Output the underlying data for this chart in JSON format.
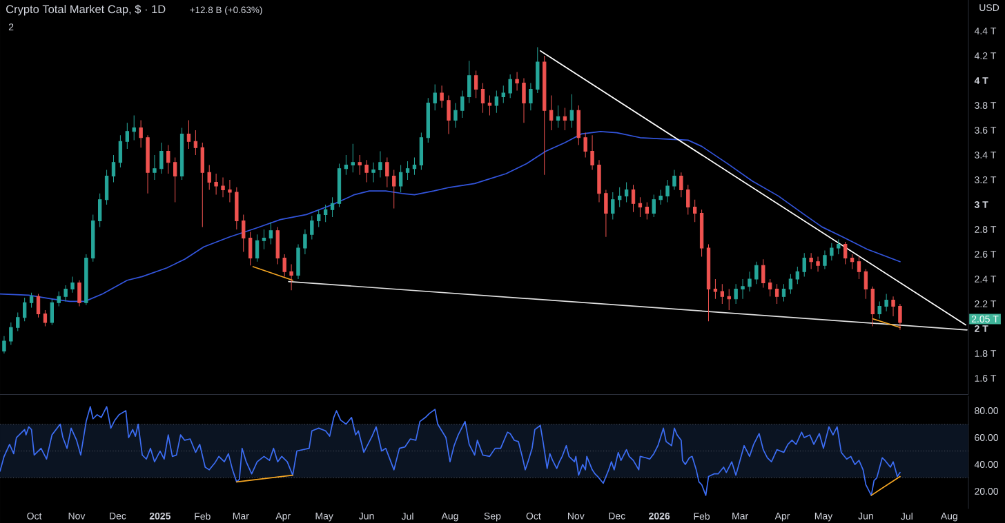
{
  "chart_data": [
    {
      "type": "candlestick",
      "title": "Crypto Total Market Cap, $ · 1D",
      "subtitle": "+12.8 B (+0.63%)",
      "x": [
        "2024-09-09",
        "2024-09-14",
        "2024-09-19",
        "2024-09-24",
        "2024-09-29",
        "2024-10-04",
        "2024-10-09",
        "2024-10-14",
        "2024-10-19",
        "2024-10-24",
        "2024-10-29",
        "2024-11-03",
        "2024-11-08",
        "2024-11-13",
        "2024-11-18",
        "2024-11-23",
        "2024-11-28",
        "2024-12-03",
        "2024-12-08",
        "2024-12-13",
        "2024-12-18",
        "2024-12-23",
        "2024-12-28",
        "2025-01-02",
        "2025-01-07",
        "2025-01-12",
        "2025-01-17",
        "2025-01-22",
        "2025-01-27",
        "2025-02-01",
        "2025-02-06",
        "2025-02-11",
        "2025-02-16",
        "2025-02-21",
        "2025-02-26",
        "2025-03-03",
        "2025-03-08",
        "2025-03-13",
        "2025-03-18",
        "2025-03-23",
        "2025-03-28",
        "2025-04-02",
        "2025-04-07",
        "2025-04-12",
        "2025-04-17",
        "2025-04-22",
        "2025-04-27",
        "2025-05-02",
        "2025-05-07",
        "2025-05-12",
        "2025-05-17",
        "2025-05-22",
        "2025-05-27",
        "2025-06-01",
        "2025-06-06",
        "2025-06-11",
        "2025-06-16",
        "2025-06-21",
        "2025-06-26",
        "2025-07-01",
        "2025-07-06",
        "2025-07-11",
        "2025-07-16",
        "2025-07-21",
        "2025-07-26",
        "2025-07-31",
        "2025-08-05",
        "2025-08-10",
        "2025-08-15",
        "2025-08-20",
        "2025-08-25",
        "2025-08-30",
        "2025-09-04",
        "2025-09-09",
        "2025-09-14",
        "2025-09-19",
        "2025-09-24",
        "2025-09-29",
        "2025-10-04",
        "2025-10-09",
        "2025-10-14",
        "2025-10-19",
        "2025-10-24",
        "2025-10-29",
        "2025-11-03",
        "2025-11-08",
        "2025-11-13",
        "2025-11-18",
        "2025-11-23",
        "2025-11-28",
        "2025-12-03",
        "2025-12-08",
        "2025-12-13",
        "2025-12-18",
        "2025-12-23",
        "2025-12-28",
        "2026-01-02",
        "2026-01-07",
        "2026-01-12",
        "2026-01-17",
        "2026-01-22",
        "2026-01-27",
        "2026-02-01",
        "2026-02-06",
        "2026-02-11",
        "2026-02-16",
        "2026-02-21",
        "2026-02-26",
        "2026-03-03",
        "2026-03-08",
        "2026-03-13",
        "2026-03-18",
        "2026-03-23",
        "2026-03-28",
        "2026-04-02",
        "2026-04-07",
        "2026-04-12",
        "2026-04-17",
        "2026-04-22",
        "2026-04-27",
        "2026-05-02",
        "2026-05-07",
        "2026-05-12",
        "2026-05-17",
        "2026-05-22",
        "2026-05-27",
        "2026-06-01",
        "2026-06-06",
        "2026-06-11",
        "2026-06-16",
        "2026-06-21",
        "2026-06-26"
      ],
      "ohlc": [
        [
          1.82,
          1.94,
          1.8,
          1.9
        ],
        [
          1.9,
          2.05,
          1.87,
          2.01
        ],
        [
          2.01,
          2.13,
          1.98,
          2.09
        ],
        [
          2.09,
          2.25,
          2.06,
          2.21
        ],
        [
          2.21,
          2.29,
          2.17,
          2.26
        ],
        [
          2.26,
          2.28,
          2.09,
          2.12
        ],
        [
          2.12,
          2.15,
          2.02,
          2.05
        ],
        [
          2.05,
          2.24,
          2.03,
          2.21
        ],
        [
          2.21,
          2.3,
          2.18,
          2.26
        ],
        [
          2.26,
          2.35,
          2.22,
          2.32
        ],
        [
          2.32,
          2.42,
          2.29,
          2.37
        ],
        [
          2.37,
          2.39,
          2.18,
          2.21
        ],
        [
          2.21,
          2.6,
          2.19,
          2.57
        ],
        [
          2.57,
          2.92,
          2.54,
          2.87
        ],
        [
          2.87,
          3.09,
          2.82,
          3.04
        ],
        [
          3.04,
          3.28,
          3.0,
          3.23
        ],
        [
          3.23,
          3.4,
          3.18,
          3.34
        ],
        [
          3.34,
          3.56,
          3.3,
          3.51
        ],
        [
          3.51,
          3.66,
          3.45,
          3.59
        ],
        [
          3.59,
          3.72,
          3.52,
          3.62
        ],
        [
          3.62,
          3.68,
          3.46,
          3.54
        ],
        [
          3.54,
          3.56,
          3.09,
          3.26
        ],
        [
          3.26,
          3.4,
          3.2,
          3.29
        ],
        [
          3.29,
          3.5,
          3.25,
          3.43
        ],
        [
          3.43,
          3.48,
          3.25,
          3.34
        ],
        [
          3.34,
          3.38,
          3.02,
          3.23
        ],
        [
          3.23,
          3.62,
          3.2,
          3.57
        ],
        [
          3.57,
          3.68,
          3.45,
          3.51
        ],
        [
          3.51,
          3.6,
          3.4,
          3.46
        ],
        [
          3.46,
          3.5,
          2.82,
          3.26
        ],
        [
          3.26,
          3.32,
          3.12,
          3.18
        ],
        [
          3.18,
          3.25,
          3.08,
          3.15
        ],
        [
          3.15,
          3.22,
          3.06,
          3.12
        ],
        [
          3.12,
          3.2,
          3.02,
          3.1
        ],
        [
          3.1,
          3.14,
          2.8,
          2.87
        ],
        [
          2.87,
          2.92,
          2.62,
          2.73
        ],
        [
          2.73,
          2.78,
          2.51,
          2.57
        ],
        [
          2.57,
          2.76,
          2.54,
          2.71
        ],
        [
          2.71,
          2.8,
          2.64,
          2.73
        ],
        [
          2.73,
          2.86,
          2.68,
          2.79
        ],
        [
          2.79,
          2.82,
          2.52,
          2.57
        ],
        [
          2.57,
          2.6,
          2.42,
          2.46
        ],
        [
          2.46,
          2.52,
          2.31,
          2.43
        ],
        [
          2.43,
          2.68,
          2.4,
          2.65
        ],
        [
          2.65,
          2.8,
          2.6,
          2.76
        ],
        [
          2.76,
          2.91,
          2.72,
          2.87
        ],
        [
          2.87,
          2.96,
          2.82,
          2.92
        ],
        [
          2.92,
          3.0,
          2.86,
          2.96
        ],
        [
          2.96,
          3.06,
          2.9,
          3.01
        ],
        [
          3.01,
          3.33,
          2.98,
          3.29
        ],
        [
          3.29,
          3.4,
          3.24,
          3.32
        ],
        [
          3.32,
          3.49,
          3.26,
          3.34
        ],
        [
          3.34,
          3.4,
          3.24,
          3.32
        ],
        [
          3.32,
          3.36,
          3.18,
          3.26
        ],
        [
          3.26,
          3.34,
          3.18,
          3.28
        ],
        [
          3.28,
          3.43,
          3.22,
          3.34
        ],
        [
          3.34,
          3.38,
          3.14,
          3.23
        ],
        [
          3.23,
          3.28,
          2.97,
          3.15
        ],
        [
          3.15,
          3.32,
          3.1,
          3.26
        ],
        [
          3.26,
          3.35,
          3.2,
          3.29
        ],
        [
          3.29,
          3.38,
          3.24,
          3.32
        ],
        [
          3.32,
          3.58,
          3.28,
          3.54
        ],
        [
          3.54,
          3.86,
          3.5,
          3.82
        ],
        [
          3.82,
          3.97,
          3.76,
          3.9
        ],
        [
          3.9,
          3.96,
          3.78,
          3.84
        ],
        [
          3.84,
          3.88,
          3.57,
          3.68
        ],
        [
          3.68,
          3.82,
          3.62,
          3.76
        ],
        [
          3.76,
          3.92,
          3.7,
          3.87
        ],
        [
          3.87,
          4.16,
          3.82,
          4.04
        ],
        [
          4.04,
          4.08,
          3.86,
          3.93
        ],
        [
          3.93,
          3.98,
          3.74,
          3.82
        ],
        [
          3.82,
          3.88,
          3.72,
          3.8
        ],
        [
          3.8,
          3.92,
          3.74,
          3.87
        ],
        [
          3.87,
          3.96,
          3.82,
          3.9
        ],
        [
          3.9,
          4.05,
          3.86,
          4.01
        ],
        [
          4.01,
          4.07,
          3.92,
          3.98
        ],
        [
          3.98,
          4.02,
          3.66,
          3.82
        ],
        [
          3.82,
          3.98,
          3.76,
          3.93
        ],
        [
          3.93,
          4.27,
          3.9,
          4.15
        ],
        [
          4.15,
          4.2,
          3.24,
          3.76
        ],
        [
          3.76,
          3.88,
          3.6,
          3.68
        ],
        [
          3.68,
          3.8,
          3.62,
          3.71
        ],
        [
          3.71,
          3.78,
          3.6,
          3.68
        ],
        [
          3.68,
          3.89,
          3.62,
          3.76
        ],
        [
          3.76,
          3.8,
          3.48,
          3.54
        ],
        [
          3.54,
          3.58,
          3.38,
          3.43
        ],
        [
          3.43,
          3.56,
          3.28,
          3.32
        ],
        [
          3.32,
          3.36,
          3.02,
          3.09
        ],
        [
          3.09,
          3.12,
          2.74,
          2.93
        ],
        [
          2.93,
          3.1,
          2.88,
          3.04
        ],
        [
          3.04,
          3.14,
          2.98,
          3.07
        ],
        [
          3.07,
          3.18,
          3.02,
          3.12
        ],
        [
          3.12,
          3.16,
          2.94,
          3.01
        ],
        [
          3.01,
          3.06,
          2.9,
          2.98
        ],
        [
          2.98,
          3.02,
          2.88,
          2.93
        ],
        [
          2.93,
          3.08,
          2.9,
          3.04
        ],
        [
          3.04,
          3.12,
          3.0,
          3.07
        ],
        [
          3.07,
          3.2,
          3.02,
          3.15
        ],
        [
          3.15,
          3.28,
          3.12,
          3.23
        ],
        [
          3.23,
          3.26,
          3.06,
          3.12
        ],
        [
          3.12,
          3.16,
          2.92,
          2.98
        ],
        [
          2.98,
          3.04,
          2.86,
          2.93
        ],
        [
          2.93,
          2.96,
          2.58,
          2.65
        ],
        [
          2.65,
          2.68,
          2.06,
          2.32
        ],
        [
          2.32,
          2.4,
          2.24,
          2.3
        ],
        [
          2.3,
          2.36,
          2.2,
          2.26
        ],
        [
          2.26,
          2.32,
          2.15,
          2.24
        ],
        [
          2.24,
          2.36,
          2.2,
          2.32
        ],
        [
          2.32,
          2.4,
          2.24,
          2.34
        ],
        [
          2.34,
          2.46,
          2.3,
          2.4
        ],
        [
          2.4,
          2.54,
          2.36,
          2.51
        ],
        [
          2.51,
          2.56,
          2.33,
          2.37
        ],
        [
          2.37,
          2.4,
          2.26,
          2.32
        ],
        [
          2.32,
          2.36,
          2.2,
          2.26
        ],
        [
          2.26,
          2.36,
          2.22,
          2.32
        ],
        [
          2.32,
          2.44,
          2.28,
          2.4
        ],
        [
          2.4,
          2.5,
          2.36,
          2.46
        ],
        [
          2.46,
          2.61,
          2.42,
          2.57
        ],
        [
          2.57,
          2.61,
          2.48,
          2.54
        ],
        [
          2.54,
          2.58,
          2.46,
          2.51
        ],
        [
          2.51,
          2.63,
          2.48,
          2.59
        ],
        [
          2.59,
          2.69,
          2.55,
          2.65
        ],
        [
          2.65,
          2.72,
          2.6,
          2.68
        ],
        [
          2.68,
          2.7,
          2.52,
          2.57
        ],
        [
          2.57,
          2.6,
          2.48,
          2.54
        ],
        [
          2.54,
          2.58,
          2.4,
          2.46
        ],
        [
          2.46,
          2.48,
          2.24,
          2.32
        ],
        [
          2.32,
          2.34,
          2.02,
          2.12
        ],
        [
          2.12,
          2.22,
          2.08,
          2.18
        ],
        [
          2.18,
          2.28,
          2.14,
          2.23
        ],
        [
          2.23,
          2.26,
          2.1,
          2.18
        ],
        [
          2.18,
          2.2,
          1.99,
          2.05
        ]
      ],
      "series": [
        {
          "type": "line",
          "color": "#3355dd",
          "x": [
            "2024-09-06",
            "2024-09-27",
            "2024-10-14",
            "2024-10-27",
            "2024-11-07",
            "2024-11-20",
            "2024-12-08",
            "2024-12-19",
            "2025-01-06",
            "2025-01-19",
            "2025-02-02",
            "2025-02-21",
            "2025-03-12",
            "2025-03-30",
            "2025-04-18",
            "2025-05-07",
            "2025-05-23",
            "2025-06-03",
            "2025-06-15",
            "2025-06-27",
            "2025-07-06",
            "2025-07-20",
            "2025-08-01",
            "2025-08-19",
            "2025-09-11",
            "2025-09-26",
            "2025-10-10",
            "2025-10-24",
            "2025-11-05",
            "2025-11-19",
            "2025-12-01",
            "2025-12-18",
            "2026-01-04",
            "2026-01-22",
            "2026-02-01",
            "2026-02-20",
            "2026-03-10",
            "2026-03-29",
            "2026-04-17",
            "2026-04-30",
            "2026-05-15",
            "2026-06-02",
            "2026-06-26"
          ],
          "values": [
            2.28,
            2.27,
            2.24,
            2.22,
            2.22,
            2.28,
            2.39,
            2.42,
            2.49,
            2.56,
            2.66,
            2.74,
            2.81,
            2.88,
            2.92,
            3.0,
            3.08,
            3.11,
            3.11,
            3.09,
            3.08,
            3.11,
            3.14,
            3.17,
            3.25,
            3.33,
            3.43,
            3.5,
            3.57,
            3.59,
            3.58,
            3.54,
            3.53,
            3.52,
            3.47,
            3.33,
            3.19,
            3.07,
            2.92,
            2.82,
            2.74,
            2.64,
            2.54
          ]
        },
        {
          "type": "line",
          "color": "#ffffff",
          "x": [
            "2025-10-06",
            "2026-08-13"
          ],
          "values": [
            4.24,
            2.03
          ]
        },
        {
          "type": "line",
          "color": "#e0e0e0",
          "x": [
            "2025-04-05",
            "2026-08-14"
          ],
          "values": [
            2.38,
            1.99
          ]
        },
        {
          "type": "line",
          "color": "#f5a623",
          "x": [
            "2025-03-10",
            "2025-04-08"
          ],
          "values": [
            2.5,
            2.39
          ]
        },
        {
          "type": "line",
          "color": "#f5a623",
          "x": [
            "2026-06-06",
            "2026-06-26"
          ],
          "values": [
            2.08,
            2.01
          ]
        }
      ],
      "xlim": [
        "2024-09-06",
        "2026-08-15"
      ],
      "ylim": [
        1.47,
        4.65
      ],
      "yticks": [
        {
          "value": 1.6,
          "label": "1.6 T"
        },
        {
          "value": 1.8,
          "label": "1.8 T"
        },
        {
          "value": 2,
          "label": "2 T"
        },
        {
          "value": 2.2,
          "label": "2.2 T"
        },
        {
          "value": 2.4,
          "label": "2.4 T"
        },
        {
          "value": 2.6,
          "label": "2.6 T"
        },
        {
          "value": 2.8,
          "label": "2.8 T"
        },
        {
          "value": 3,
          "label": "3 T"
        },
        {
          "value": 3.2,
          "label": "3.2 T"
        },
        {
          "value": 3.4,
          "label": "3.4 T"
        },
        {
          "value": 3.6,
          "label": "3.6 T"
        },
        {
          "value": 3.8,
          "label": "3.8 T"
        },
        {
          "value": 4,
          "label": "4 T"
        },
        {
          "value": 4.2,
          "label": "4.2 T"
        },
        {
          "value": 4.4,
          "label": "4.4 T"
        }
      ],
      "tick_labels": "y",
      "annotations": [
        "2.05 T",
        "2",
        "USD"
      ]
    },
    {
      "type": "line",
      "series": [
        {
          "color": "#3d6ef5",
          "x": [
            "2024-09-06",
            "2024-09-09",
            "2024-09-13",
            "2024-09-16",
            "2024-09-18",
            "2024-09-24",
            "2024-09-25",
            "2024-09-27",
            "2024-09-29",
            "2024-10-01",
            "2024-10-06",
            "2024-10-10",
            "2024-10-14",
            "2024-10-20",
            "2024-10-22",
            "2024-10-25",
            "2024-10-28",
            "2024-11-01",
            "2024-11-04",
            "2024-11-08",
            "2024-11-11",
            "2024-11-13",
            "2024-11-16",
            "2024-11-19",
            "2024-11-23",
            "2024-11-26",
            "2024-11-29",
            "2024-12-02",
            "2024-12-07",
            "2024-12-09",
            "2024-12-12",
            "2024-12-14",
            "2024-12-16",
            "2024-12-19",
            "2024-12-22",
            "2024-12-25",
            "2024-12-28",
            "2025-01-01",
            "2025-01-04",
            "2025-01-07",
            "2025-01-10",
            "2025-01-13",
            "2025-01-16",
            "2025-01-19",
            "2025-01-23",
            "2025-01-27",
            "2025-01-30",
            "2025-02-03",
            "2025-02-06",
            "2025-02-10",
            "2025-02-13",
            "2025-02-17",
            "2025-02-20",
            "2025-02-23",
            "2025-02-26",
            "2025-02-28",
            "2025-03-02",
            "2025-03-05",
            "2025-03-09",
            "2025-03-13",
            "2025-03-18",
            "2025-03-22",
            "2025-03-25",
            "2025-03-28",
            "2025-03-31",
            "2025-04-04",
            "2025-04-08",
            "2025-04-11",
            "2025-04-20",
            "2025-04-22",
            "2025-04-27",
            "2025-05-02",
            "2025-05-05",
            "2025-05-08",
            "2025-05-10",
            "2025-05-13",
            "2025-05-17",
            "2025-05-21",
            "2025-05-24",
            "2025-05-26",
            "2025-05-30",
            "2025-06-02",
            "2025-06-05",
            "2025-06-08",
            "2025-06-12",
            "2025-06-15",
            "2025-06-21",
            "2025-06-25",
            "2025-06-29",
            "2025-07-03",
            "2025-07-07",
            "2025-07-10",
            "2025-07-14",
            "2025-07-17",
            "2025-07-21",
            "2025-07-23",
            "2025-07-26",
            "2025-07-29",
            "2025-08-01",
            "2025-08-04",
            "2025-08-07",
            "2025-08-12",
            "2025-08-15",
            "2025-08-19",
            "2025-08-21",
            "2025-08-25",
            "2025-08-30",
            "2025-09-03",
            "2025-09-07",
            "2025-09-12",
            "2025-09-14",
            "2025-09-17",
            "2025-09-20",
            "2025-09-23",
            "2025-09-25",
            "2025-09-27",
            "2025-09-30",
            "2025-10-02",
            "2025-10-06",
            "2025-10-08",
            "2025-10-11",
            "2025-10-13",
            "2025-10-15",
            "2025-10-18",
            "2025-10-20",
            "2025-10-22",
            "2025-10-25",
            "2025-10-27",
            "2025-10-31",
            "2025-11-01",
            "2025-11-03",
            "2025-11-06",
            "2025-11-08",
            "2025-11-09",
            "2025-11-13",
            "2025-11-15",
            "2025-11-17",
            "2025-11-21",
            "2025-11-25",
            "2025-11-27",
            "2025-11-29",
            "2025-12-02",
            "2025-12-04",
            "2025-12-08",
            "2025-12-10",
            "2025-12-13",
            "2025-12-17",
            "2025-12-18",
            "2025-12-22",
            "2025-12-25",
            "2025-12-28",
            "2025-12-31",
            "2026-01-04",
            "2026-01-06",
            "2026-01-10",
            "2026-01-12",
            "2026-01-14",
            "2026-01-17",
            "2026-01-18",
            "2026-01-20",
            "2026-01-23",
            "2026-01-25",
            "2026-01-28",
            "2026-01-30",
            "2026-02-01",
            "2026-02-04",
            "2026-02-06",
            "2026-02-10",
            "2026-02-13",
            "2026-02-17",
            "2026-02-19",
            "2026-02-23",
            "2026-02-26",
            "2026-03-01",
            "2026-03-04",
            "2026-03-08",
            "2026-03-11",
            "2026-03-15",
            "2026-03-18",
            "2026-03-21",
            "2026-03-24",
            "2026-03-28",
            "2026-04-02",
            "2026-04-05",
            "2026-04-08",
            "2026-04-11",
            "2026-04-15",
            "2026-04-17",
            "2026-04-21",
            "2026-04-24",
            "2026-04-28",
            "2026-05-01",
            "2026-05-05",
            "2026-05-08",
            "2026-05-11",
            "2026-05-14",
            "2026-05-18",
            "2026-05-21",
            "2026-05-24",
            "2026-05-27",
            "2026-05-30",
            "2026-06-01",
            "2026-06-03",
            "2026-06-05",
            "2026-06-07",
            "2026-06-09",
            "2026-06-13",
            "2026-06-15",
            "2026-06-19",
            "2026-06-21",
            "2026-06-24",
            "2026-06-26"
          ],
          "values": [
            35,
            46,
            55,
            48,
            60,
            66,
            62,
            68,
            66,
            47,
            52,
            44,
            62,
            70,
            60,
            52,
            67,
            58,
            47,
            72,
            83,
            74,
            77,
            75,
            83,
            67,
            73,
            77,
            80,
            60,
            66,
            61,
            70,
            47,
            44,
            52,
            42,
            50,
            44,
            62,
            46,
            47,
            62,
            58,
            59,
            49,
            55,
            38,
            36,
            41,
            46,
            42,
            48,
            36,
            27,
            29,
            52,
            42,
            33,
            42,
            46,
            43,
            52,
            42,
            46,
            42,
            32,
            50,
            52,
            65,
            67,
            65,
            61,
            75,
            80,
            73,
            70,
            75,
            62,
            65,
            49,
            55,
            61,
            68,
            50,
            52,
            36,
            52,
            53,
            59,
            58,
            72,
            75,
            78,
            81,
            70,
            65,
            60,
            42,
            54,
            62,
            72,
            55,
            47,
            58,
            47,
            46,
            52,
            52,
            64,
            63,
            58,
            57,
            45,
            36,
            42,
            52,
            66,
            69,
            57,
            37,
            48,
            43,
            37,
            42,
            46,
            54,
            46,
            42,
            46,
            32,
            40,
            36,
            46,
            36,
            33,
            31,
            26,
            36,
            42,
            36,
            49,
            43,
            51,
            46,
            43,
            36,
            46,
            45,
            44,
            48,
            54,
            67,
            57,
            54,
            67,
            62,
            58,
            43,
            40,
            45,
            46,
            36,
            27,
            25,
            17,
            31,
            33,
            33,
            38,
            34,
            42,
            32,
            43,
            54,
            46,
            55,
            63,
            51,
            45,
            42,
            51,
            49,
            55,
            58,
            55,
            64,
            60,
            62,
            55,
            63,
            52,
            68,
            62,
            68,
            49,
            44,
            46,
            40,
            43,
            36,
            25,
            21,
            17,
            28,
            30,
            45,
            43,
            38,
            42,
            31,
            34
          ]
        },
        {
          "color": "#f5a623",
          "x": [
            "2025-02-26",
            "2025-04-08"
          ],
          "values": [
            27,
            32
          ]
        },
        {
          "color": "#f5a623",
          "x": [
            "2026-06-05",
            "2026-06-26"
          ],
          "values": [
            17,
            31
          ]
        }
      ],
      "xlim": [
        "2024-09-06",
        "2026-08-15"
      ],
      "xticks": [
        {
          "value": "2024-10-01",
          "label": "Oct"
        },
        {
          "value": "2024-11-01",
          "label": "Nov"
        },
        {
          "value": "2024-12-01",
          "label": "Dec"
        },
        {
          "value": "2025-01-01",
          "label": "2025"
        },
        {
          "value": "2025-02-01",
          "label": "Feb"
        },
        {
          "value": "2025-03-01",
          "label": "Mar"
        },
        {
          "value": "2025-04-01",
          "label": "Apr"
        },
        {
          "value": "2025-05-01",
          "label": "May"
        },
        {
          "value": "2025-06-01",
          "label": "Jun"
        },
        {
          "value": "2025-07-01",
          "label": "Jul"
        },
        {
          "value": "2025-08-01",
          "label": "Aug"
        },
        {
          "value": "2025-09-01",
          "label": "Sep"
        },
        {
          "value": "2025-10-01",
          "label": "Oct"
        },
        {
          "value": "2025-11-01",
          "label": "Nov"
        },
        {
          "value": "2025-12-01",
          "label": "Dec"
        },
        {
          "value": "2026-01-01",
          "label": "2026"
        },
        {
          "value": "2026-02-01",
          "label": "Feb"
        },
        {
          "value": "2026-03-01",
          "label": "Mar"
        },
        {
          "value": "2026-04-01",
          "label": "Apr"
        },
        {
          "value": "2026-05-01",
          "label": "May"
        },
        {
          "value": "2026-06-01",
          "label": "Jun"
        },
        {
          "value": "2026-07-01",
          "label": "Jul"
        },
        {
          "value": "2026-08-01",
          "label": "Aug"
        }
      ],
      "ylim": [
        7,
        91
      ],
      "yticks": [
        {
          "value": 20,
          "label": "20.00"
        },
        {
          "value": 40,
          "label": "40.00"
        },
        {
          "value": 60,
          "label": "60.00"
        },
        {
          "value": 80,
          "label": "80.00"
        }
      ],
      "bands": [
        {
          "axis": "y",
          "from": 30,
          "to": 70,
          "color": "#0b1422"
        }
      ],
      "ref_lines": [
        {
          "axis": "y",
          "value": 70,
          "color": "#5d606b",
          "line_style": "dotted"
        },
        {
          "axis": "y",
          "value": 50,
          "color": "#5d606b",
          "line_style": "dotted"
        },
        {
          "axis": "y",
          "value": 30,
          "color": "#5d606b",
          "line_style": "dotted"
        }
      ]
    }
  ]
}
